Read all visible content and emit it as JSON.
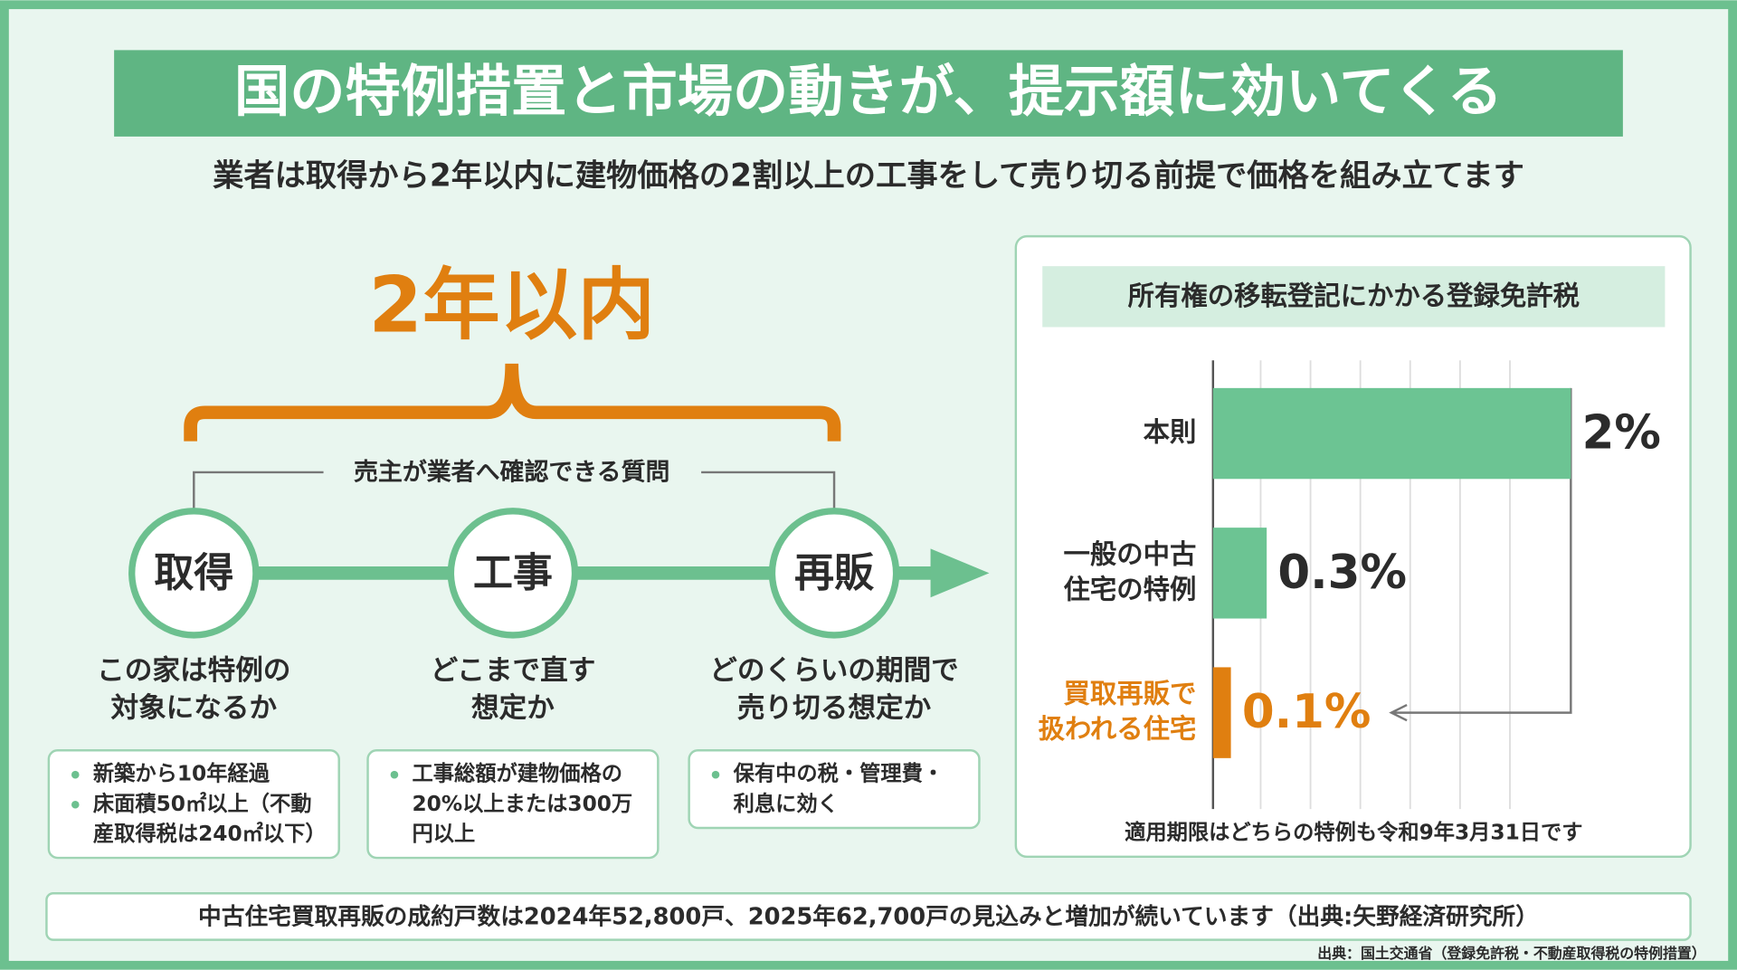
{
  "title": "国の特例措置と市場の動きが、提示額に効いてくる",
  "subtitle": "業者は取得から2年以内に建物価格の2割以上の工事をして売り切る前提で価格を組み立てます",
  "period": {
    "label": "2年以内",
    "caption": "売主が業者へ確認できる質問"
  },
  "steps": [
    {
      "label": "取得",
      "question": [
        "この家は特例の",
        "対象になるか"
      ],
      "notes": [
        [
          "新築から10年経過"
        ],
        [
          "床面積50㎡以上（不動",
          "産取得税は240㎡以下）"
        ]
      ]
    },
    {
      "label": "工事",
      "question": [
        "どこまで直す",
        "想定か"
      ],
      "notes": [
        [
          "工事総額が建物価格の",
          "20%以上または300万",
          "円以上"
        ]
      ]
    },
    {
      "label": "再販",
      "question": [
        "どのくらいの期間で",
        "売り切る想定か"
      ],
      "notes": [
        [
          "保有中の税・管理費・",
          "利息に効く"
        ]
      ]
    }
  ],
  "chart_data": {
    "type": "bar",
    "orientation": "horizontal",
    "title": "所有権の移転登記にかかる登録免許税",
    "categories": [
      [
        "本則"
      ],
      [
        "一般の中古",
        "住宅の特例"
      ],
      [
        "買取再販で",
        "扱われる住宅"
      ]
    ],
    "values": [
      2,
      0.3,
      0.1
    ],
    "value_labels": [
      "2%",
      "0.3%",
      "0.1%"
    ],
    "colors": [
      "#6cc493",
      "#6cc493",
      "#e07f10"
    ],
    "xlim": [
      0,
      2
    ],
    "note": "適用期限はどちらの特例も令和9年3月31日です"
  },
  "footer_note": "中古住宅買取再販の成約戸数は2024年52,800戸、2025年62,700戸の見込みと増加が続いています（出典:矢野経済研究所）",
  "source": "出典：国土交通省（登録免許税・不動産取得税の特例措置）"
}
